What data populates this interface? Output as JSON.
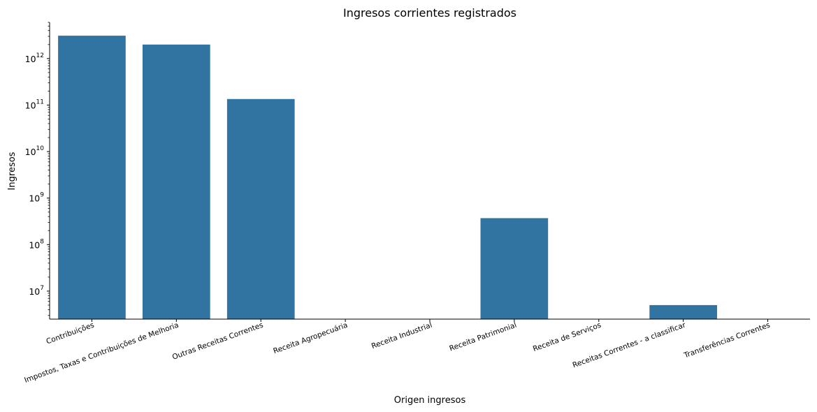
{
  "chart_data": {
    "type": "bar",
    "title": "Ingresos corrientes registrados",
    "xlabel": "Origen ingresos",
    "ylabel": "Ingresos",
    "yscale": "log",
    "ylim": [
      2500000,
      6000000000000
    ],
    "yticks": [
      {
        "value": 10000000,
        "base": "10",
        "exp": "7"
      },
      {
        "value": 100000000,
        "base": "10",
        "exp": "8"
      },
      {
        "value": 1000000000,
        "base": "10",
        "exp": "9"
      },
      {
        "value": 10000000000,
        "base": "10",
        "exp": "10"
      },
      {
        "value": 100000000000,
        "base": "10",
        "exp": "11"
      },
      {
        "value": 1000000000000,
        "base": "10",
        "exp": "12"
      }
    ],
    "categories": [
      "Contribuições",
      "Impostos, Taxas e Contribuições de Melhoria",
      "Outras Receitas Correntes",
      "Receita Agropecuária",
      "Receita Industrial",
      "Receita Patrimonial",
      "Receita de Serviços",
      "Receitas Correntes - a classificar",
      "Transferências Correntes"
    ],
    "values": [
      3100000000000,
      2000000000000,
      135000000000,
      null,
      null,
      370000000,
      null,
      5000000,
      null
    ],
    "bar_color": "#3274a1",
    "grid": false
  }
}
